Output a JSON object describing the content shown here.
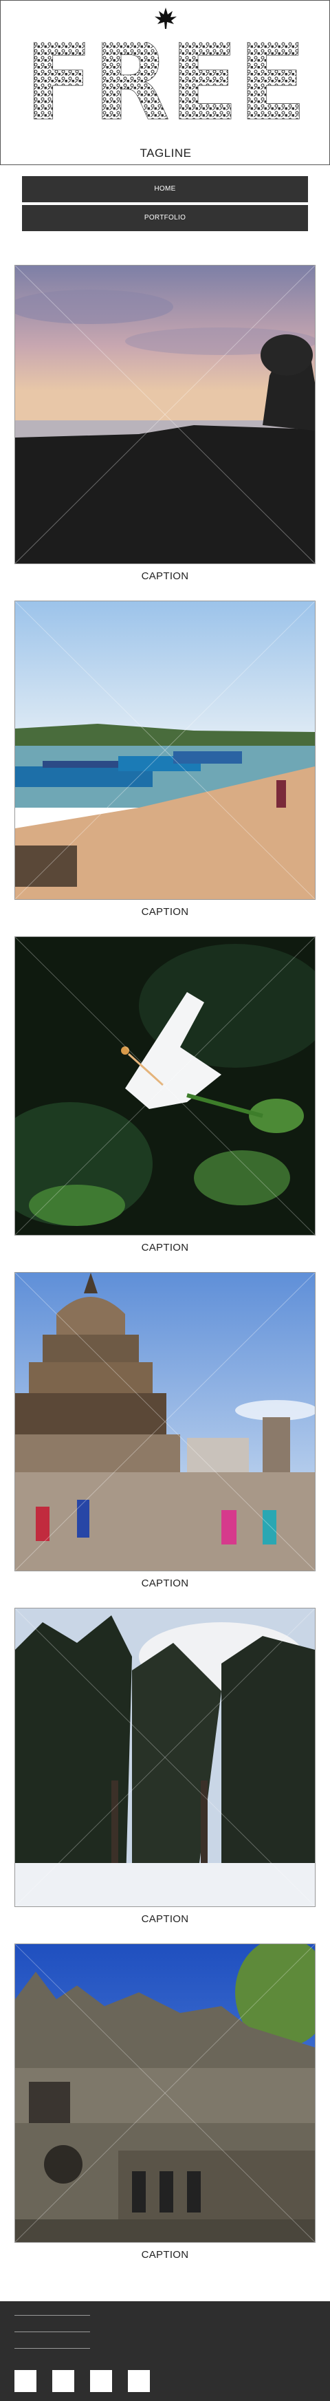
{
  "site": {
    "logo_text": "FREE",
    "tagline": "TAGLINE",
    "logo_icon": "leaf-icon"
  },
  "nav": {
    "items": [
      {
        "label": "HOME"
      },
      {
        "label": "PORTFOLIO"
      }
    ]
  },
  "gallery": {
    "items": [
      {
        "caption": "CAPTION",
        "subject": "sunset-lakeshore"
      },
      {
        "caption": "CAPTION",
        "subject": "riverside-boats"
      },
      {
        "caption": "CAPTION",
        "subject": "white-hibiscus"
      },
      {
        "caption": "CAPTION",
        "subject": "stone-temple-square"
      },
      {
        "caption": "CAPTION",
        "subject": "snowy-pine-trees"
      },
      {
        "caption": "CAPTION",
        "subject": "gothic-palace"
      }
    ]
  },
  "footer": {
    "social_icons": [
      "social-icon-1",
      "social-icon-2",
      "social-icon-3",
      "social-icon-4"
    ]
  },
  "colors": {
    "nav_background": "#333333",
    "footer_background": "#2e2e2e",
    "text": "#222222"
  }
}
